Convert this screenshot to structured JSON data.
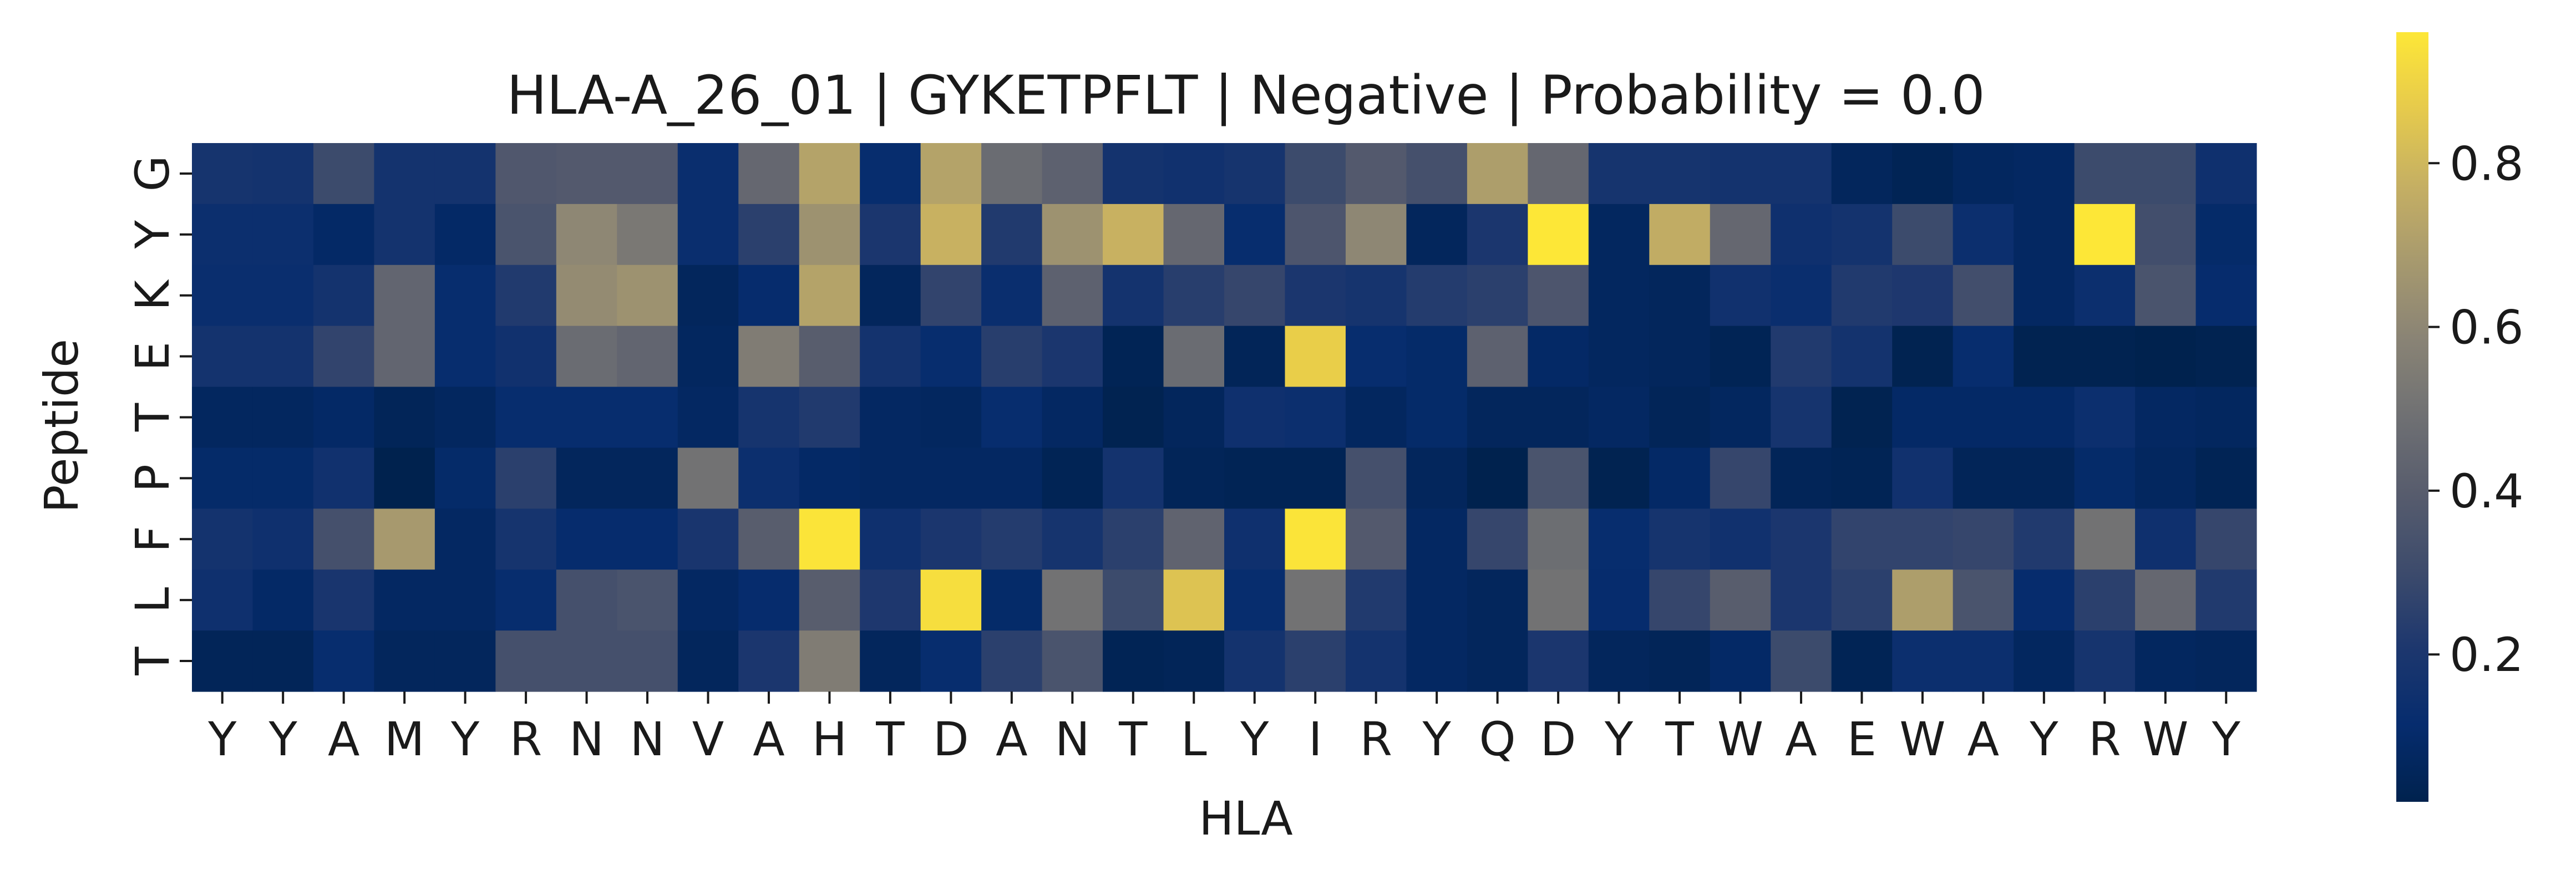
{
  "chart_data": {
    "type": "heatmap",
    "title": "HLA-A_26_01 | GYKETPFLT | Negative | Probability = 0.0",
    "xlabel": "HLA",
    "ylabel": "Peptide",
    "x_labels": [
      "Y",
      "Y",
      "A",
      "M",
      "Y",
      "R",
      "N",
      "N",
      "V",
      "A",
      "H",
      "T",
      "D",
      "A",
      "N",
      "T",
      "L",
      "Y",
      "I",
      "R",
      "Y",
      "Q",
      "D",
      "Y",
      "T",
      "W",
      "A",
      "E",
      "W",
      "A",
      "Y",
      "R",
      "W",
      "Y"
    ],
    "y_labels": [
      "G",
      "Y",
      "K",
      "E",
      "T",
      "P",
      "F",
      "L",
      "T"
    ],
    "values": [
      [
        0.18,
        0.17,
        0.3,
        0.17,
        0.17,
        0.37,
        0.38,
        0.38,
        0.13,
        0.45,
        0.72,
        0.12,
        0.72,
        0.47,
        0.42,
        0.17,
        0.16,
        0.18,
        0.3,
        0.38,
        0.33,
        0.7,
        0.45,
        0.18,
        0.18,
        0.17,
        0.17,
        0.06,
        0.04,
        0.07,
        0.08,
        0.3,
        0.3,
        0.15
      ],
      [
        0.14,
        0.14,
        0.09,
        0.17,
        0.09,
        0.35,
        0.6,
        0.53,
        0.13,
        0.25,
        0.65,
        0.2,
        0.78,
        0.22,
        0.65,
        0.78,
        0.45,
        0.12,
        0.36,
        0.6,
        0.06,
        0.2,
        0.96,
        0.07,
        0.76,
        0.45,
        0.15,
        0.17,
        0.3,
        0.14,
        0.08,
        0.96,
        0.32,
        0.1
      ],
      [
        0.13,
        0.13,
        0.17,
        0.44,
        0.12,
        0.22,
        0.62,
        0.65,
        0.06,
        0.11,
        0.72,
        0.06,
        0.27,
        0.13,
        0.42,
        0.17,
        0.24,
        0.28,
        0.2,
        0.18,
        0.23,
        0.25,
        0.36,
        0.07,
        0.06,
        0.16,
        0.13,
        0.22,
        0.21,
        0.32,
        0.08,
        0.14,
        0.35,
        0.11
      ],
      [
        0.17,
        0.17,
        0.27,
        0.44,
        0.12,
        0.16,
        0.47,
        0.44,
        0.07,
        0.55,
        0.4,
        0.17,
        0.12,
        0.24,
        0.2,
        0.04,
        0.47,
        0.05,
        0.88,
        0.12,
        0.1,
        0.42,
        0.09,
        0.07,
        0.06,
        0.04,
        0.22,
        0.17,
        0.03,
        0.12,
        0.03,
        0.03,
        0.02,
        0.03
      ],
      [
        0.07,
        0.07,
        0.09,
        0.05,
        0.07,
        0.12,
        0.12,
        0.12,
        0.08,
        0.18,
        0.22,
        0.08,
        0.07,
        0.12,
        0.08,
        0.03,
        0.06,
        0.15,
        0.14,
        0.07,
        0.1,
        0.06,
        0.06,
        0.08,
        0.05,
        0.07,
        0.18,
        0.03,
        0.09,
        0.09,
        0.09,
        0.14,
        0.08,
        0.07
      ],
      [
        0.1,
        0.1,
        0.16,
        0.02,
        0.1,
        0.25,
        0.06,
        0.06,
        0.5,
        0.14,
        0.09,
        0.08,
        0.08,
        0.08,
        0.04,
        0.17,
        0.05,
        0.04,
        0.04,
        0.33,
        0.06,
        0.02,
        0.35,
        0.03,
        0.09,
        0.28,
        0.05,
        0.04,
        0.16,
        0.05,
        0.05,
        0.1,
        0.07,
        0.04
      ],
      [
        0.17,
        0.15,
        0.33,
        0.68,
        0.08,
        0.18,
        0.11,
        0.11,
        0.19,
        0.4,
        0.95,
        0.15,
        0.2,
        0.23,
        0.18,
        0.25,
        0.43,
        0.15,
        0.95,
        0.38,
        0.08,
        0.28,
        0.48,
        0.12,
        0.18,
        0.16,
        0.2,
        0.27,
        0.27,
        0.28,
        0.22,
        0.5,
        0.15,
        0.28
      ],
      [
        0.15,
        0.09,
        0.19,
        0.08,
        0.08,
        0.12,
        0.33,
        0.35,
        0.08,
        0.11,
        0.4,
        0.21,
        0.93,
        0.1,
        0.5,
        0.3,
        0.84,
        0.12,
        0.5,
        0.22,
        0.08,
        0.06,
        0.5,
        0.11,
        0.28,
        0.4,
        0.2,
        0.25,
        0.7,
        0.35,
        0.11,
        0.25,
        0.45,
        0.22
      ],
      [
        0.05,
        0.05,
        0.12,
        0.06,
        0.06,
        0.33,
        0.33,
        0.33,
        0.06,
        0.2,
        0.55,
        0.06,
        0.12,
        0.25,
        0.35,
        0.04,
        0.05,
        0.17,
        0.25,
        0.17,
        0.08,
        0.06,
        0.2,
        0.06,
        0.05,
        0.09,
        0.3,
        0.04,
        0.14,
        0.14,
        0.07,
        0.18,
        0.07,
        0.06
      ]
    ],
    "colormap": "cividis",
    "colorbar": {
      "vmin": 0.02,
      "vmax": 0.96,
      "ticks": [
        0.2,
        0.4,
        0.6,
        0.8
      ],
      "tick_labels": [
        "0.2",
        "0.4",
        "0.6",
        "0.8"
      ]
    }
  }
}
